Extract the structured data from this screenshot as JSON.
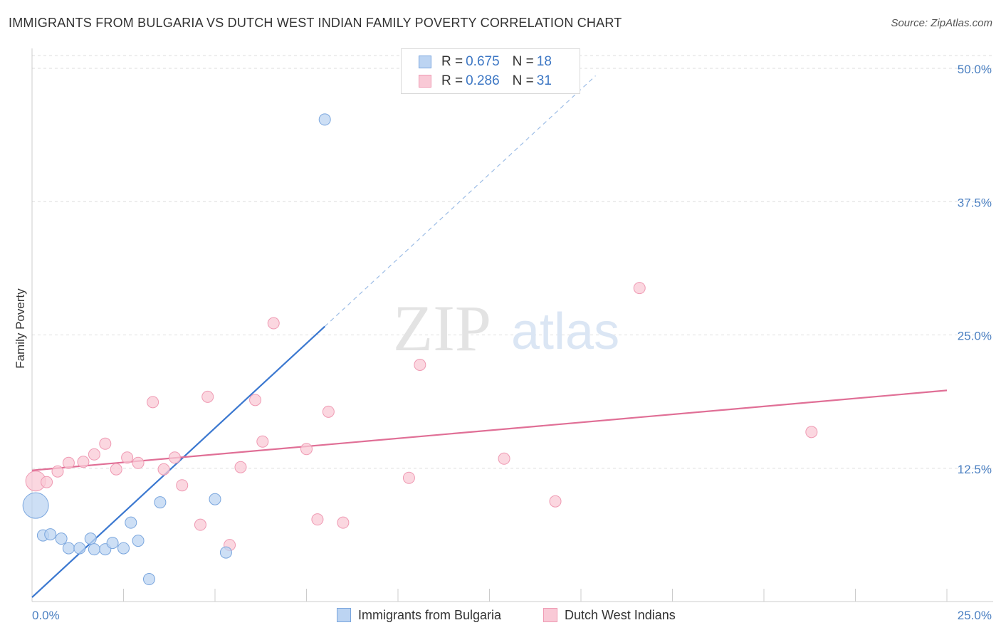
{
  "header": {
    "title": "IMMIGRANTS FROM BULGARIA VS DUTCH WEST INDIAN FAMILY POVERTY CORRELATION CHART",
    "source": "Source: ZipAtlas.com"
  },
  "watermark": {
    "zip": "ZIP",
    "atlas": "atlas"
  },
  "legend": {
    "rows": [
      {
        "r_label": "R =",
        "r_value": "0.675",
        "n_label": "N =",
        "n_value": "18"
      },
      {
        "r_label": "R =",
        "r_value": "0.286",
        "n_label": "N =",
        "n_value": "31"
      }
    ]
  },
  "colors": {
    "bulgaria_fill": "#bcd4f2",
    "bulgaria_stroke": "#7aa6de",
    "bulgaria_line": "#3b78d0",
    "dutch_fill": "#f9c9d6",
    "dutch_stroke": "#ef9ab3",
    "dutch_line": "#e06f96",
    "grid": "#dddddd",
    "tick_text": "#4a7fc1"
  },
  "chart_data": {
    "type": "scatter",
    "title": "IMMIGRANTS FROM BULGARIA VS DUTCH WEST INDIAN FAMILY POVERTY CORRELATION CHART",
    "xlabel": "",
    "ylabel": "Family Poverty",
    "xlim": [
      0,
      25
    ],
    "ylim": [
      0,
      50
    ],
    "x_tick_labels": [
      "0.0%",
      "25.0%"
    ],
    "y_ticks": [
      12.5,
      25,
      37.5,
      50
    ],
    "y_tick_labels": [
      "12.5%",
      "25.0%",
      "37.5%",
      "50.0%"
    ],
    "legend_position": "top-center",
    "series": [
      {
        "name": "Immigrants from Bulgaria",
        "color": "#bcd4f2",
        "points": [
          {
            "x": 0.1,
            "y": 9.0,
            "size": 18
          },
          {
            "x": 0.3,
            "y": 6.2
          },
          {
            "x": 0.5,
            "y": 6.3
          },
          {
            "x": 0.8,
            "y": 5.9
          },
          {
            "x": 1.0,
            "y": 5.0
          },
          {
            "x": 1.3,
            "y": 5.0
          },
          {
            "x": 1.6,
            "y": 5.9
          },
          {
            "x": 1.7,
            "y": 4.9
          },
          {
            "x": 2.0,
            "y": 4.9
          },
          {
            "x": 2.2,
            "y": 5.5
          },
          {
            "x": 2.5,
            "y": 5.0
          },
          {
            "x": 2.7,
            "y": 7.4
          },
          {
            "x": 2.9,
            "y": 5.7
          },
          {
            "x": 3.2,
            "y": 2.1
          },
          {
            "x": 3.5,
            "y": 9.3
          },
          {
            "x": 5.0,
            "y": 9.6
          },
          {
            "x": 5.3,
            "y": 4.6
          },
          {
            "x": 8.0,
            "y": 45.2
          }
        ],
        "trend": {
          "x0": 0,
          "y0": 0.4,
          "x1": 8.0,
          "y1": 25.8,
          "dash_to": {
            "x": 15.4,
            "y": 49.3
          }
        }
      },
      {
        "name": "Dutch West Indians",
        "color": "#f9c9d6",
        "points": [
          {
            "x": 0.1,
            "y": 11.3,
            "size": 14
          },
          {
            "x": 0.4,
            "y": 11.2
          },
          {
            "x": 0.7,
            "y": 12.2
          },
          {
            "x": 1.0,
            "y": 13.0
          },
          {
            "x": 1.4,
            "y": 13.1
          },
          {
            "x": 1.7,
            "y": 13.8
          },
          {
            "x": 2.0,
            "y": 14.8
          },
          {
            "x": 2.3,
            "y": 12.4
          },
          {
            "x": 2.6,
            "y": 13.5
          },
          {
            "x": 2.9,
            "y": 13.0
          },
          {
            "x": 3.3,
            "y": 18.7
          },
          {
            "x": 3.6,
            "y": 12.4
          },
          {
            "x": 3.9,
            "y": 13.5
          },
          {
            "x": 4.1,
            "y": 10.9
          },
          {
            "x": 4.6,
            "y": 7.2
          },
          {
            "x": 4.8,
            "y": 19.2
          },
          {
            "x": 5.4,
            "y": 5.3
          },
          {
            "x": 5.7,
            "y": 12.6
          },
          {
            "x": 6.1,
            "y": 18.9
          },
          {
            "x": 6.3,
            "y": 15.0
          },
          {
            "x": 6.6,
            "y": 26.1
          },
          {
            "x": 7.5,
            "y": 14.3
          },
          {
            "x": 7.8,
            "y": 7.7
          },
          {
            "x": 8.1,
            "y": 17.8
          },
          {
            "x": 8.5,
            "y": 7.4
          },
          {
            "x": 10.3,
            "y": 11.6
          },
          {
            "x": 10.6,
            "y": 22.2
          },
          {
            "x": 12.9,
            "y": 13.4
          },
          {
            "x": 14.3,
            "y": 9.4
          },
          {
            "x": 16.6,
            "y": 29.4
          },
          {
            "x": 21.3,
            "y": 15.9
          }
        ],
        "trend": {
          "x0": 0,
          "y0": 12.3,
          "x1": 25,
          "y1": 19.8
        }
      }
    ]
  }
}
